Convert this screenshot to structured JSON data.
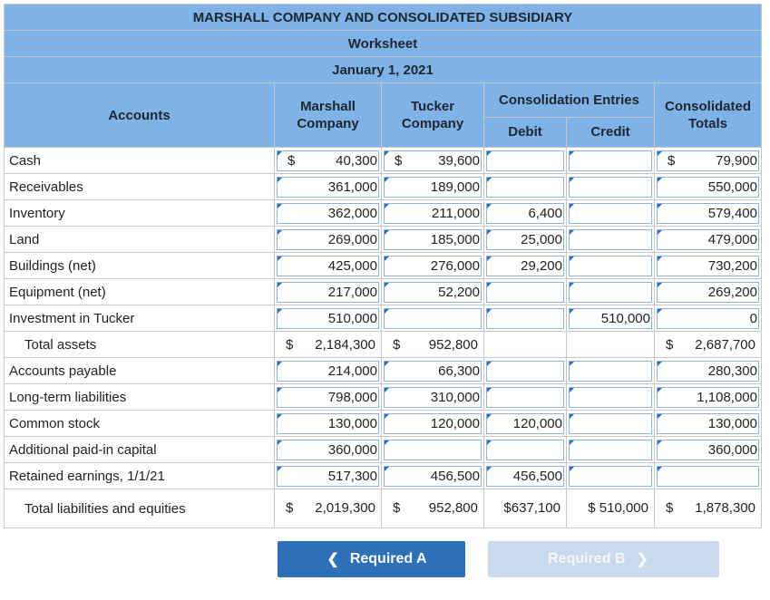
{
  "header": {
    "title": "MARSHALL COMPANY AND CONSOLIDATED SUBSIDIARY",
    "subtitle": "Worksheet",
    "date": "January 1, 2021"
  },
  "columns": {
    "accounts": "Accounts",
    "marshall_line1": "Marshall",
    "marshall_line2": "Company",
    "tucker_line1": "Tucker",
    "tucker_line2": "Company",
    "entries": "Consolidation Entries",
    "debit": "Debit",
    "credit": "Credit",
    "totals_line1": "Consolidated",
    "totals_line2": "Totals"
  },
  "rows": [
    {
      "label": "Cash",
      "marshall": "40,300",
      "tucker": "39,600",
      "debit": "",
      "credit": "",
      "total": "79,900"
    },
    {
      "label": "Receivables",
      "marshall": "361,000",
      "tucker": "189,000",
      "debit": "",
      "credit": "",
      "total": "550,000"
    },
    {
      "label": "Inventory",
      "marshall": "362,000",
      "tucker": "211,000",
      "debit": "6,400",
      "credit": "",
      "total": "579,400"
    },
    {
      "label": "Land",
      "marshall": "269,000",
      "tucker": "185,000",
      "debit": "25,000",
      "credit": "",
      "total": "479,000"
    },
    {
      "label": "Buildings (net)",
      "marshall": "425,000",
      "tucker": "276,000",
      "debit": "29,200",
      "credit": "",
      "total": "730,200"
    },
    {
      "label": "Equipment (net)",
      "marshall": "217,000",
      "tucker": "52,200",
      "debit": "",
      "credit": "",
      "total": "269,200"
    },
    {
      "label": "Investment in Tucker",
      "marshall": "510,000",
      "tucker": "",
      "debit": "",
      "credit": "510,000",
      "total": "0"
    },
    {
      "label": "Total assets",
      "marshall": "2,184,300",
      "tucker": "952,800",
      "debit": "",
      "credit": "",
      "total": "2,687,700"
    },
    {
      "label": "Accounts payable",
      "marshall": "214,000",
      "tucker": "66,300",
      "debit": "",
      "credit": "",
      "total": "280,300"
    },
    {
      "label": "Long-term liabilities",
      "marshall": "798,000",
      "tucker": "310,000",
      "debit": "",
      "credit": "",
      "total": "1,108,000"
    },
    {
      "label": "Common stock",
      "marshall": "130,000",
      "tucker": "120,000",
      "debit": "120,000",
      "credit": "",
      "total": "130,000"
    },
    {
      "label": "Additional paid-in capital",
      "marshall": "360,000",
      "tucker": "",
      "debit": "",
      "credit": "",
      "total": "360,000"
    },
    {
      "label": "Retained earnings, 1/1/21",
      "marshall": "517,300",
      "tucker": "456,500",
      "debit": "456,500",
      "credit": "",
      "total": ""
    },
    {
      "label": "Total liabilities and equities",
      "marshall": "2,019,300",
      "tucker": "952,800",
      "debit": "$637,100",
      "credit": "$ 510,000",
      "total": "1,878,300"
    }
  ],
  "dollar_sign": "$",
  "nav": {
    "prev_label": "Required A",
    "next_label": "Required B"
  }
}
